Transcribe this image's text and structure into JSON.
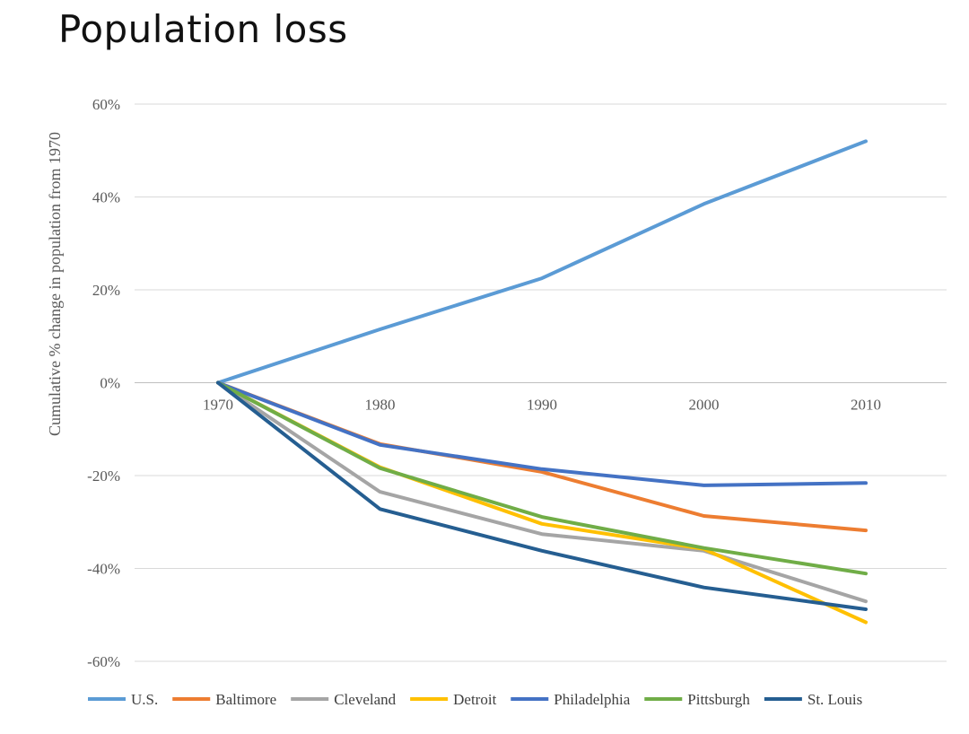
{
  "page": {
    "title": "Population loss"
  },
  "colors": {
    "U.S.": "#5b9bd5",
    "Baltimore": "#ed7d31",
    "Cleveland": "#a5a5a5",
    "Detroit": "#ffc000",
    "Philadelphia": "#4472c4",
    "Pittsburgh": "#70ad47",
    "St. Louis": "#255e91",
    "gridline": "#d9d9d9",
    "axis": "#bfbfbf"
  },
  "chart_data": {
    "type": "line",
    "title": "Population loss",
    "xlabel": "",
    "ylabel": "Cumulative % change in population from 1970",
    "x": [
      "1970",
      "1980",
      "1990",
      "2000",
      "2010"
    ],
    "ylim": [
      -60,
      60
    ],
    "yticks": [
      60,
      40,
      20,
      0,
      -20,
      -40,
      -60
    ],
    "ytick_labels": [
      "60%",
      "40%",
      "20%",
      "0%",
      "-20%",
      "-40%",
      "-60%"
    ],
    "grid": true,
    "legend_position": "bottom",
    "series": [
      {
        "name": "U.S.",
        "values": [
          0,
          11.5,
          22.5,
          38.5,
          52
        ]
      },
      {
        "name": "Baltimore",
        "values": [
          0,
          -13.2,
          -19.2,
          -28.7,
          -31.8
        ]
      },
      {
        "name": "Cleveland",
        "values": [
          0,
          -23.5,
          -32.6,
          -36.2,
          -47.1
        ]
      },
      {
        "name": "Detroit",
        "values": [
          0,
          -18.2,
          -30.4,
          -35.8,
          -51.6
        ]
      },
      {
        "name": "Philadelphia",
        "values": [
          0,
          -13.4,
          -18.6,
          -22.1,
          -21.6
        ]
      },
      {
        "name": "Pittsburgh",
        "values": [
          0,
          -18.4,
          -28.9,
          -35.6,
          -41.1
        ]
      },
      {
        "name": "St. Louis",
        "values": [
          0,
          -27.2,
          -36.2,
          -44.1,
          -48.8
        ]
      }
    ]
  }
}
